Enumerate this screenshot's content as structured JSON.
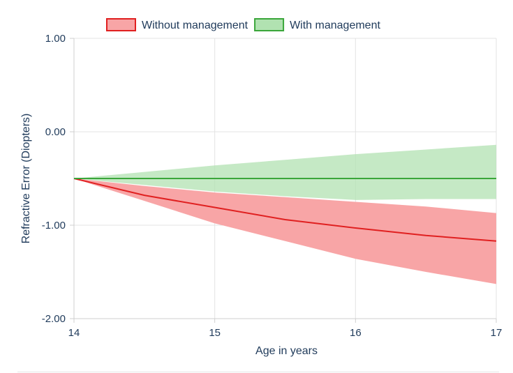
{
  "chart_data": {
    "type": "area",
    "xlabel": "Age in years",
    "ylabel": "Refractive Error (Diopters)",
    "xlim": [
      14,
      17
    ],
    "ylim": [
      -2.0,
      1.0
    ],
    "x_ticks": [
      "14",
      "15",
      "16",
      "17"
    ],
    "y_ticks": [
      "1.00",
      "0.00",
      "-1.00",
      "-2.00"
    ],
    "grid": true,
    "legend_position": "top",
    "x": [
      14,
      14.5,
      15,
      15.5,
      16,
      16.5,
      17
    ],
    "series": [
      {
        "name": "Without management",
        "color": "#e02020",
        "fill": "#f8a5a6",
        "values": [
          -0.5,
          -0.68,
          -0.81,
          -0.94,
          -1.03,
          -1.11,
          -1.17
        ],
        "lower": [
          -0.5,
          -0.74,
          -0.98,
          -1.17,
          -1.36,
          -1.5,
          -1.63
        ],
        "upper": [
          -0.5,
          -0.58,
          -0.65,
          -0.7,
          -0.75,
          -0.8,
          -0.87
        ]
      },
      {
        "name": "With management",
        "color": "#3aa63a",
        "fill": "#b1e2b1",
        "values": [
          -0.5,
          -0.5,
          -0.5,
          -0.5,
          -0.5,
          -0.5,
          -0.5
        ],
        "lower": [
          -0.5,
          -0.57,
          -0.64,
          -0.69,
          -0.73,
          -0.72,
          -0.72
        ],
        "upper": [
          -0.5,
          -0.43,
          -0.36,
          -0.3,
          -0.24,
          -0.19,
          -0.14
        ]
      }
    ]
  }
}
